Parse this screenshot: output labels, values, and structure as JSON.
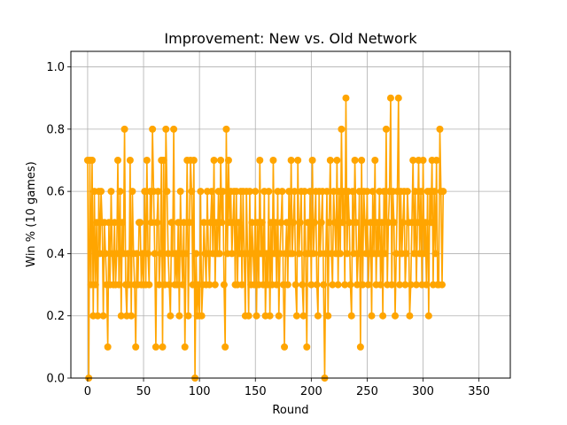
{
  "chart_data": {
    "type": "line",
    "title": "Improvement: New vs. Old Network",
    "xlabel": "Round",
    "ylabel": "Win % (10 games)",
    "xlim": [
      -15,
      378
    ],
    "ylim": [
      0,
      1.05
    ],
    "xticks": [
      0,
      50,
      100,
      150,
      200,
      250,
      300,
      350
    ],
    "yticks": [
      0.0,
      0.2,
      0.4,
      0.6,
      0.8,
      1.0
    ],
    "xtick_labels": [
      "0",
      "50",
      "100",
      "150",
      "200",
      "250",
      "300",
      "350"
    ],
    "ytick_labels": [
      "0.0",
      "0.2",
      "0.4",
      "0.6",
      "0.8",
      "1.0"
    ],
    "grid": true,
    "legend": "none",
    "series": [
      {
        "color": "#ffa500",
        "marker": "circle",
        "x_start": 0,
        "x_step": 1,
        "values": [
          0.7,
          0.0,
          0.7,
          0.3,
          0.7,
          0.2,
          0.6,
          0.3,
          0.5,
          0.2,
          0.6,
          0.4,
          0.6,
          0.5,
          0.2,
          0.5,
          0.4,
          0.3,
          0.1,
          0.5,
          0.3,
          0.6,
          0.4,
          0.3,
          0.5,
          0.3,
          0.4,
          0.7,
          0.3,
          0.6,
          0.2,
          0.5,
          0.4,
          0.8,
          0.3,
          0.2,
          0.4,
          0.3,
          0.7,
          0.2,
          0.6,
          0.4,
          0.3,
          0.1,
          0.4,
          0.3,
          0.5,
          0.5,
          0.3,
          0.4,
          0.3,
          0.6,
          0.3,
          0.7,
          0.4,
          0.3,
          0.6,
          0.5,
          0.8,
          0.6,
          0.4,
          0.1,
          0.5,
          0.6,
          0.3,
          0.4,
          0.7,
          0.1,
          0.7,
          0.3,
          0.8,
          0.6,
          0.4,
          0.3,
          0.2,
          0.5,
          0.4,
          0.8,
          0.3,
          0.4,
          0.3,
          0.5,
          0.2,
          0.6,
          0.4,
          0.3,
          0.5,
          0.1,
          0.4,
          0.7,
          0.2,
          0.5,
          0.7,
          0.6,
          0.3,
          0.7,
          0.0,
          0.4,
          0.2,
          0.3,
          0.2,
          0.6,
          0.2,
          0.3,
          0.5,
          0.4,
          0.3,
          0.6,
          0.4,
          0.3,
          0.5,
          0.6,
          0.4,
          0.7,
          0.3,
          0.5,
          0.4,
          0.6,
          0.4,
          0.7,
          0.5,
          0.6,
          0.3,
          0.1,
          0.8,
          0.4,
          0.7,
          0.5,
          0.6,
          0.4,
          0.5,
          0.6,
          0.3,
          0.6,
          0.3,
          0.5,
          0.4,
          0.6,
          0.3,
          0.6,
          0.4,
          0.2,
          0.6,
          0.4,
          0.2,
          0.6,
          0.3,
          0.5,
          0.4,
          0.3,
          0.6,
          0.2,
          0.5,
          0.3,
          0.7,
          0.4,
          0.5,
          0.3,
          0.6,
          0.2,
          0.4,
          0.3,
          0.6,
          0.2,
          0.5,
          0.3,
          0.7,
          0.4,
          0.5,
          0.3,
          0.6,
          0.2,
          0.4,
          0.5,
          0.6,
          0.3,
          0.1,
          0.4,
          0.5,
          0.3,
          0.6,
          0.4,
          0.7,
          0.4,
          0.5,
          0.6,
          0.3,
          0.2,
          0.7,
          0.4,
          0.5,
          0.6,
          0.3,
          0.2,
          0.6,
          0.4,
          0.1,
          0.5,
          0.4,
          0.6,
          0.3,
          0.7,
          0.4,
          0.5,
          0.6,
          0.3,
          0.2,
          0.6,
          0.4,
          0.5,
          0.6,
          0.3,
          0.0,
          0.4,
          0.6,
          0.2,
          0.5,
          0.7,
          0.4,
          0.3,
          0.6,
          0.5,
          0.4,
          0.7,
          0.3,
          0.6,
          0.4,
          0.8,
          0.5,
          0.6,
          0.3,
          0.9,
          0.4,
          0.6,
          0.5,
          0.3,
          0.2,
          0.6,
          0.4,
          0.7,
          0.5,
          0.3,
          0.4,
          0.6,
          0.1,
          0.7,
          0.3,
          0.6,
          0.5,
          0.4,
          0.6,
          0.3,
          0.4,
          0.5,
          0.2,
          0.6,
          0.4,
          0.7,
          0.3,
          0.5,
          0.4,
          0.6,
          0.3,
          0.5,
          0.2,
          0.6,
          0.4,
          0.8,
          0.3,
          0.5,
          0.6,
          0.9,
          0.3,
          0.6,
          0.5,
          0.2,
          0.4,
          0.6,
          0.9,
          0.3,
          0.6,
          0.4,
          0.5,
          0.6,
          0.3,
          0.4,
          0.6,
          0.5,
          0.2,
          0.3,
          0.5,
          0.7,
          0.4,
          0.6,
          0.3,
          0.5,
          0.7,
          0.4,
          0.6,
          0.3,
          0.7,
          0.4,
          0.5,
          0.3,
          0.6,
          0.2,
          0.6,
          0.5,
          0.7,
          0.3,
          0.6,
          0.4,
          0.7,
          0.3,
          0.3,
          0.8,
          0.6,
          0.3,
          0.6
        ]
      }
    ]
  }
}
